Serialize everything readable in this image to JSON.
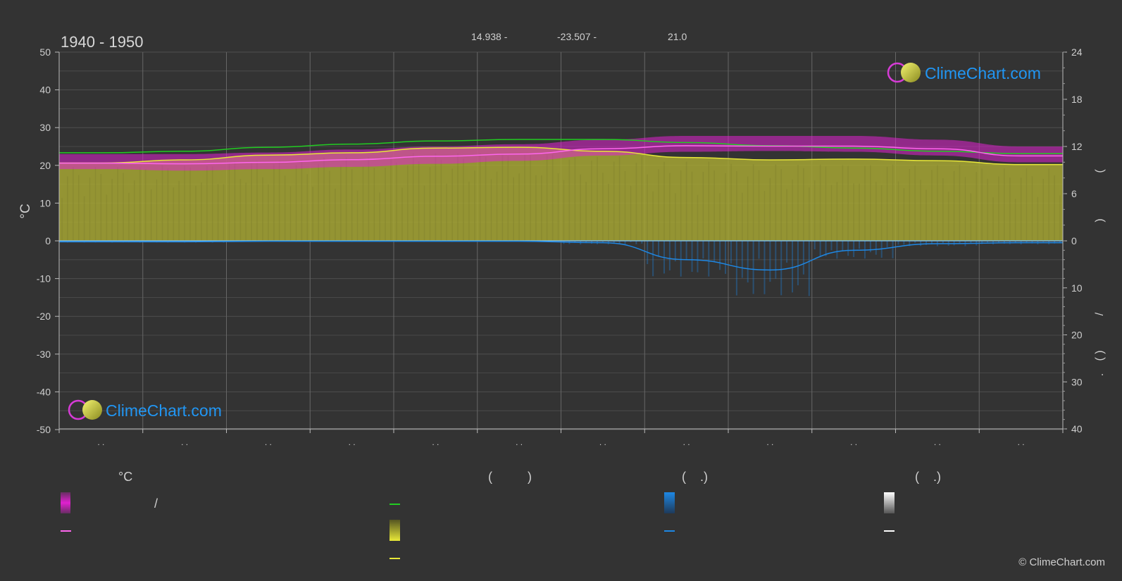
{
  "header": {
    "period": "1940 - 1950",
    "lat": "14.938 -",
    "lon": "-23.507 -",
    "elev": "21.0"
  },
  "copyright": "© ClimeChart.com",
  "logo": {
    "text": "ClimeChart.com"
  },
  "legend": {
    "temp_header": "°C",
    "sun_header": "(          )",
    "rain_header": "(    .)",
    "snow_header": "(    .)",
    "slash_label": "/"
  },
  "colors": {
    "background": "#333333",
    "temp_band": "#e020d0",
    "daylight": "#22cc22",
    "sunshine_band": "#a6a634",
    "sunshine_line": "#e8e838",
    "avg_temp": "#ff66ee",
    "rain": "#1e88e5",
    "snow": "#ffffff",
    "logo_text": "#2196f3"
  },
  "chart_data": {
    "type": "line",
    "title": "1940 - 1950",
    "ylabel": "°C",
    "ylim": [
      -50,
      50
    ],
    "yticks": [
      "50",
      "40",
      "30",
      "20",
      "10",
      "0",
      "-10",
      "-20",
      "-30",
      "-40",
      "-50"
    ],
    "y2_hours_lim": [
      0,
      24
    ],
    "y2_hours_ticks": [
      "24",
      "18",
      "12",
      "6",
      "0"
    ],
    "y2_precip_lim": [
      0,
      40
    ],
    "y2_precip_ticks": [
      "10",
      "20",
      "30",
      "40"
    ],
    "right_axis_marks": [
      "(",
      ")",
      "(",
      ")",
      "/",
      ")",
      "(",
      "."
    ],
    "x_tick_labels": [
      ". .",
      ". .",
      ". .",
      ". .",
      ". .",
      ". .",
      ". .",
      ". .",
      ". .",
      ". .",
      ". .",
      ". ."
    ],
    "months": 12,
    "series": [
      {
        "key": "daylight",
        "values": [
          11.2,
          11.4,
          11.9,
          12.3,
          12.7,
          12.9,
          12.9,
          12.5,
          12.1,
          11.8,
          11.4,
          11.1
        ]
      },
      {
        "key": "sunshine",
        "values": [
          9.9,
          10.3,
          10.9,
          11.2,
          11.8,
          11.9,
          11.4,
          10.6,
          10.3,
          10.4,
          10.2,
          9.7
        ]
      },
      {
        "key": "avg_temp",
        "values": [
          20.6,
          20.4,
          20.8,
          21.5,
          22.4,
          23.0,
          24.4,
          25.2,
          25.1,
          25.1,
          24.4,
          22.5
        ]
      },
      {
        "key": "temp_max",
        "values": [
          23.0,
          23.0,
          23.4,
          24.2,
          25.0,
          25.6,
          26.8,
          27.8,
          27.8,
          27.8,
          26.8,
          25.0
        ]
      },
      {
        "key": "temp_min",
        "values": [
          19.0,
          18.6,
          19.0,
          19.6,
          20.4,
          21.2,
          22.6,
          23.6,
          23.8,
          23.6,
          22.6,
          20.8
        ]
      },
      {
        "key": "rain_mm",
        "values": [
          0.2,
          0.2,
          0.1,
          0.1,
          0.1,
          0.1,
          0.4,
          4.0,
          6.2,
          2.0,
          0.6,
          0.4
        ]
      }
    ],
    "grid": true
  }
}
